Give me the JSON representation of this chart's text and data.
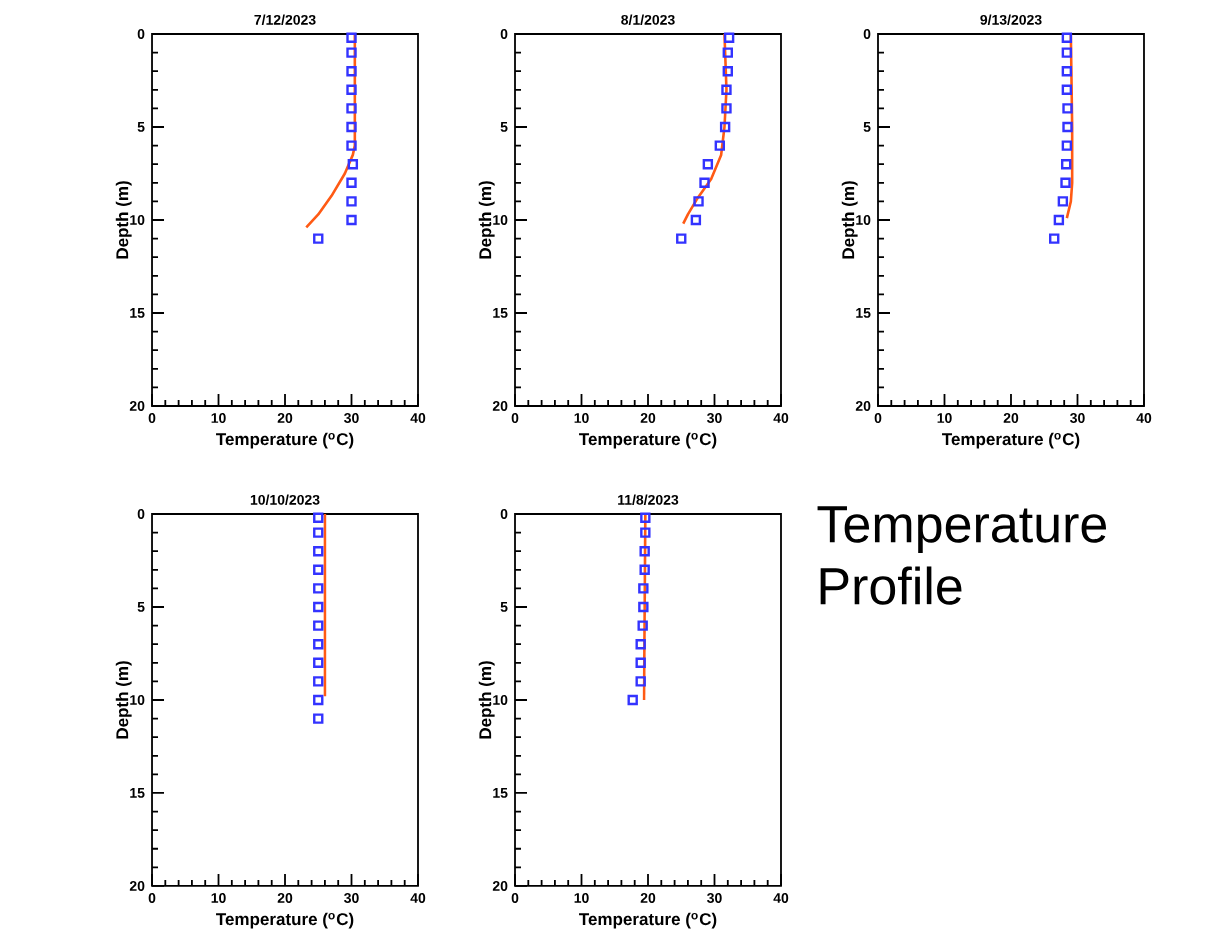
{
  "chart_data": [
    {
      "type": "line",
      "title": "7/12/2023",
      "xlabel": "Temperature ($^{o}$C)",
      "ylabel": "Depth (m)",
      "xlim": [
        0,
        40
      ],
      "ylim": [
        20,
        0
      ],
      "xticks": [
        0,
        10,
        20,
        30,
        40
      ],
      "yticks": [
        0,
        5,
        10,
        15,
        20
      ],
      "series": [
        {
          "type": "scatter",
          "marker": "square",
          "color": "#3333ff",
          "x": [
            30,
            30,
            30,
            30,
            30,
            30,
            30,
            30.2,
            30,
            30,
            30,
            25
          ],
          "values": [
            0.2,
            1,
            2,
            3,
            4,
            5,
            6,
            7,
            8,
            9,
            10,
            11
          ]
        },
        {
          "type": "line",
          "color": "#ff5a14",
          "x": [
            30.5,
            30.5,
            30.2,
            29,
            27,
            25,
            23.2
          ],
          "values": [
            0,
            6,
            6.5,
            7.5,
            8.7,
            9.7,
            10.4
          ]
        }
      ]
    },
    {
      "type": "line",
      "title": "8/1/2023",
      "xlabel": "Temperature ($^{o}$C)",
      "ylabel": "Depth (m)",
      "xlim": [
        0,
        40
      ],
      "ylim": [
        20,
        0
      ],
      "xticks": [
        0,
        10,
        20,
        30,
        40
      ],
      "yticks": [
        0,
        5,
        10,
        15,
        20
      ],
      "series": [
        {
          "type": "scatter",
          "marker": "square",
          "color": "#3333ff",
          "x": [
            32.2,
            32,
            32,
            31.8,
            31.8,
            31.6,
            30.8,
            29,
            28.5,
            27.6,
            27.2,
            25
          ],
          "values": [
            0.2,
            1,
            2,
            3,
            4,
            5,
            6,
            7,
            8,
            9,
            10,
            11
          ]
        },
        {
          "type": "line",
          "color": "#ff5a14",
          "x": [
            31.5,
            31.8,
            31.5,
            31,
            29.5,
            27.5,
            26,
            25.3
          ],
          "values": [
            0,
            3,
            5,
            6.5,
            7.8,
            8.8,
            9.7,
            10.2
          ]
        }
      ]
    },
    {
      "type": "line",
      "title": "9/13/2023",
      "xlabel": "Temperature ($^{o}$C)",
      "ylabel": "Depth (m)",
      "xlim": [
        0,
        40
      ],
      "ylim": [
        20,
        0
      ],
      "xticks": [
        0,
        10,
        20,
        30,
        40
      ],
      "yticks": [
        0,
        5,
        10,
        15,
        20
      ],
      "series": [
        {
          "type": "scatter",
          "marker": "square",
          "color": "#3333ff",
          "x": [
            28.4,
            28.4,
            28.4,
            28.4,
            28.5,
            28.5,
            28.4,
            28.3,
            28.2,
            27.8,
            27.2,
            26.5
          ],
          "values": [
            0.2,
            1,
            2,
            3,
            4,
            5,
            6,
            7,
            8,
            9,
            10,
            11
          ]
        },
        {
          "type": "line",
          "color": "#ff5a14",
          "x": [
            29,
            29.2,
            29.2,
            29,
            28.4
          ],
          "values": [
            0,
            5,
            8,
            9,
            9.9
          ]
        }
      ]
    },
    {
      "type": "line",
      "title": "10/10/2023",
      "xlabel": "Temperature ($^{o}$C)",
      "ylabel": "Depth (m)",
      "xlim": [
        0,
        40
      ],
      "ylim": [
        20,
        0
      ],
      "xticks": [
        0,
        10,
        20,
        30,
        40
      ],
      "yticks": [
        0,
        5,
        10,
        15,
        20
      ],
      "series": [
        {
          "type": "scatter",
          "marker": "square",
          "color": "#3333ff",
          "x": [
            25,
            25,
            25,
            25,
            25,
            25,
            25,
            25,
            25,
            25,
            25,
            25
          ],
          "values": [
            0.2,
            1,
            2,
            3,
            4,
            5,
            6,
            7,
            8,
            9,
            10,
            11
          ]
        },
        {
          "type": "line",
          "color": "#ff5a14",
          "x": [
            26,
            26
          ],
          "values": [
            0,
            9.8
          ]
        }
      ]
    },
    {
      "type": "line",
      "title": "11/8/2023",
      "xlabel": "Temperature ($^{o}$C)",
      "ylabel": "Depth (m)",
      "xlim": [
        0,
        40
      ],
      "ylim": [
        20,
        0
      ],
      "xticks": [
        0,
        10,
        20,
        30,
        40
      ],
      "yticks": [
        0,
        5,
        10,
        15,
        20
      ],
      "series": [
        {
          "type": "scatter",
          "marker": "square",
          "color": "#3333ff",
          "x": [
            19.6,
            19.6,
            19.5,
            19.5,
            19.3,
            19.3,
            19.2,
            18.9,
            18.9,
            18.9,
            17.7
          ],
          "values": [
            0.2,
            1,
            2,
            3,
            4,
            5,
            6,
            7,
            8,
            9,
            10
          ]
        },
        {
          "type": "line",
          "color": "#ff5a14",
          "x": [
            19.6,
            19.4
          ],
          "values": [
            0,
            10
          ]
        }
      ]
    },
    {
      "type": "other",
      "annotations": [
        "Temperature Profile"
      ]
    }
  ]
}
